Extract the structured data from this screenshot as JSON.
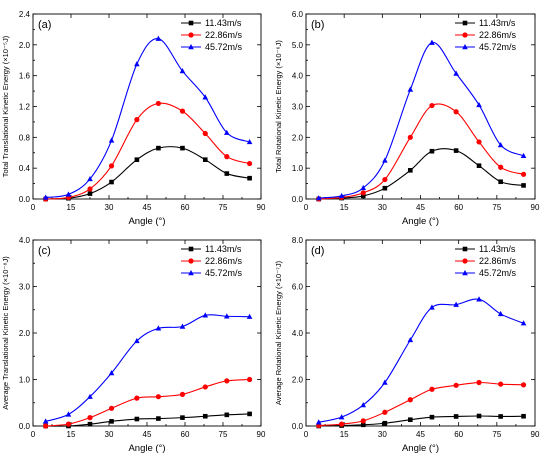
{
  "legend_labels": [
    "11.43m/s",
    "22.86m/s",
    "45.72m/s"
  ],
  "series_colors": [
    "#000000",
    "#ff0000",
    "#0000ff"
  ],
  "chart_data": [
    {
      "type": "line",
      "panel_label": "(a)",
      "xlabel": "Angle (°)",
      "ylabel": "Total Translational Kinetic Energy",
      "ylabel_unit": "(×10⁻⁵J)",
      "xlim": [
        0,
        90
      ],
      "ylim": [
        0,
        2.4
      ],
      "xticks": [
        0,
        15,
        30,
        45,
        60,
        75,
        90
      ],
      "yticks": [
        "0.0",
        "0.4",
        "0.8",
        "1.2",
        "1.6",
        "2.0",
        "2.4"
      ],
      "x": [
        5,
        14,
        22.5,
        31,
        41,
        49.5,
        59,
        68,
        76.5,
        85.5
      ],
      "series": [
        {
          "name": "11.43m/s",
          "marker": "square",
          "values": [
            0.0,
            0.01,
            0.07,
            0.22,
            0.51,
            0.66,
            0.66,
            0.51,
            0.33,
            0.27
          ]
        },
        {
          "name": "22.86m/s",
          "marker": "circle",
          "values": [
            0.0,
            0.02,
            0.13,
            0.43,
            1.03,
            1.24,
            1.14,
            0.85,
            0.55,
            0.46
          ]
        },
        {
          "name": "45.72m/s",
          "marker": "triangle",
          "values": [
            0.02,
            0.06,
            0.26,
            0.76,
            1.75,
            2.08,
            1.66,
            1.32,
            0.86,
            0.74
          ]
        }
      ],
      "legend_position": "top-right"
    },
    {
      "type": "line",
      "panel_label": "(b)",
      "xlabel": "Angle (°)",
      "ylabel": "Total Rotational Kinetic Energy",
      "ylabel_unit": "(×10⁻⁶J)",
      "xlim": [
        0,
        90
      ],
      "ylim": [
        0,
        6.0
      ],
      "xticks": [
        0,
        15,
        30,
        45,
        60,
        75,
        90
      ],
      "yticks": [
        "0.0",
        "1.0",
        "2.0",
        "3.0",
        "4.0",
        "5.0",
        "6.0"
      ],
      "x": [
        5,
        14,
        22.5,
        31,
        41,
        49.5,
        59,
        68,
        76.5,
        85.5
      ],
      "series": [
        {
          "name": "11.43m/s",
          "marker": "square",
          "values": [
            0.0,
            0.03,
            0.1,
            0.35,
            0.93,
            1.55,
            1.57,
            1.08,
            0.56,
            0.44
          ]
        },
        {
          "name": "22.86m/s",
          "marker": "circle",
          "values": [
            0.0,
            0.05,
            0.2,
            0.63,
            2.0,
            3.03,
            2.83,
            1.85,
            1.03,
            0.8
          ]
        },
        {
          "name": "45.72m/s",
          "marker": "triangle",
          "values": [
            0.03,
            0.1,
            0.36,
            1.25,
            3.55,
            5.07,
            4.07,
            3.05,
            1.75,
            1.4
          ]
        }
      ],
      "legend_position": "top-right"
    },
    {
      "type": "line",
      "panel_label": "(c)",
      "xlabel": "Angle (°)",
      "ylabel": "Average Translational Kinetic Energy",
      "ylabel_unit": "(×10⁻⁸J)",
      "xlim": [
        0,
        90
      ],
      "ylim": [
        0,
        4.0
      ],
      "xticks": [
        0,
        15,
        30,
        45,
        60,
        75,
        90
      ],
      "yticks": [
        "0.0",
        "1.0",
        "2.0",
        "3.0",
        "4.0"
      ],
      "x": [
        5,
        14,
        22.5,
        31,
        41,
        49.5,
        59,
        68,
        76.5,
        85.5
      ],
      "series": [
        {
          "name": "11.43m/s",
          "marker": "square",
          "values": [
            0.0,
            0.0,
            0.04,
            0.1,
            0.15,
            0.16,
            0.18,
            0.21,
            0.24,
            0.26
          ]
        },
        {
          "name": "22.86m/s",
          "marker": "circle",
          "values": [
            0.0,
            0.04,
            0.18,
            0.38,
            0.6,
            0.63,
            0.68,
            0.84,
            0.97,
            1.0
          ]
        },
        {
          "name": "45.72m/s",
          "marker": "triangle",
          "values": [
            0.1,
            0.25,
            0.63,
            1.14,
            1.83,
            2.1,
            2.14,
            2.38,
            2.36,
            2.35
          ]
        }
      ],
      "legend_position": "top-right"
    },
    {
      "type": "line",
      "panel_label": "(d)",
      "xlabel": "Angle (°)",
      "ylabel": "Average Rotational Kinetic Energy",
      "ylabel_unit": "(×10⁻⁷J)",
      "xlim": [
        0,
        90
      ],
      "ylim": [
        0,
        8.0
      ],
      "xticks": [
        0,
        15,
        30,
        45,
        60,
        75,
        90
      ],
      "yticks": [
        "0.0",
        "2.0",
        "4.0",
        "6.0",
        "8.0"
      ],
      "x": [
        5,
        14,
        22.5,
        31,
        41,
        49.5,
        59,
        68,
        76.5,
        85.5
      ],
      "series": [
        {
          "name": "11.43m/s",
          "marker": "square",
          "values": [
            0.0,
            0.02,
            0.05,
            0.12,
            0.27,
            0.38,
            0.41,
            0.43,
            0.41,
            0.42
          ]
        },
        {
          "name": "22.86m/s",
          "marker": "circle",
          "values": [
            0.02,
            0.08,
            0.22,
            0.59,
            1.13,
            1.58,
            1.75,
            1.87,
            1.8,
            1.77
          ]
        },
        {
          "name": "45.72m/s",
          "marker": "triangle",
          "values": [
            0.16,
            0.38,
            0.9,
            1.87,
            3.7,
            5.1,
            5.22,
            5.45,
            4.82,
            4.42
          ]
        }
      ],
      "legend_position": "top-right"
    }
  ]
}
